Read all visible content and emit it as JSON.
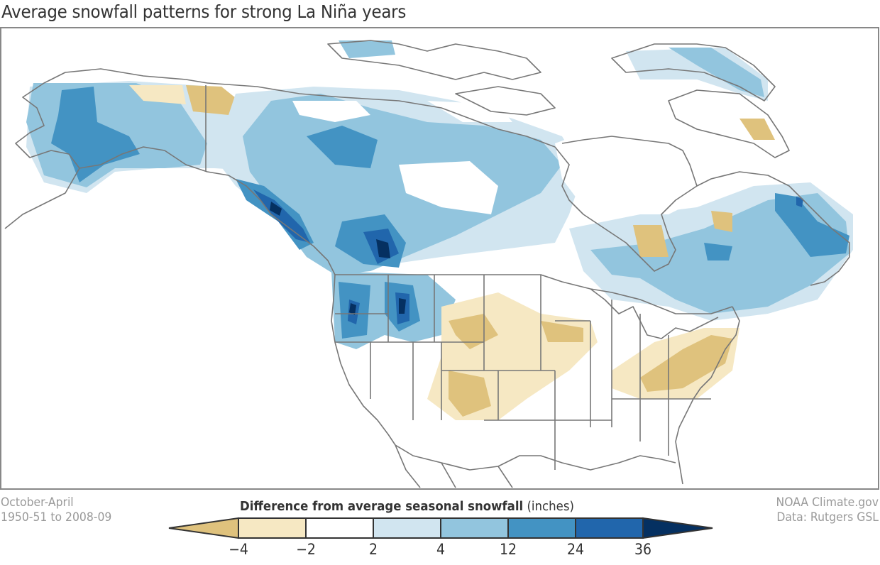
{
  "title": "Average snowfall patterns for strong La Niña years",
  "footer_left": {
    "line1": "October-April",
    "line2": "1950-51 to 2008-09"
  },
  "footer_right": {
    "line1": "NOAA Climate.gov",
    "line2": "Data: Rutgers GSL"
  },
  "legend": {
    "title_bold": "Difference from average seasonal snowfall",
    "units": "(inches)",
    "ticks": [
      "−4",
      "−2",
      "2",
      "4",
      "12",
      "24",
      "36"
    ],
    "classes": [
      {
        "range": "< -4",
        "color": "#dfc27d"
      },
      {
        "range": "-4 to -2",
        "color": "#f6e8c3"
      },
      {
        "range": "-2 to 2",
        "color": "#ffffff"
      },
      {
        "range": "2 to 4",
        "color": "#d1e5f0"
      },
      {
        "range": "4 to 12",
        "color": "#92c5de"
      },
      {
        "range": "12 to 24",
        "color": "#4393c3"
      },
      {
        "range": "24 to 36",
        "color": "#2166ac"
      },
      {
        "range": "> 36",
        "color": "#053061"
      }
    ]
  },
  "map": {
    "region": "North America",
    "variable": "Seasonal snowfall anomaly",
    "outline_color": "#777777"
  }
}
